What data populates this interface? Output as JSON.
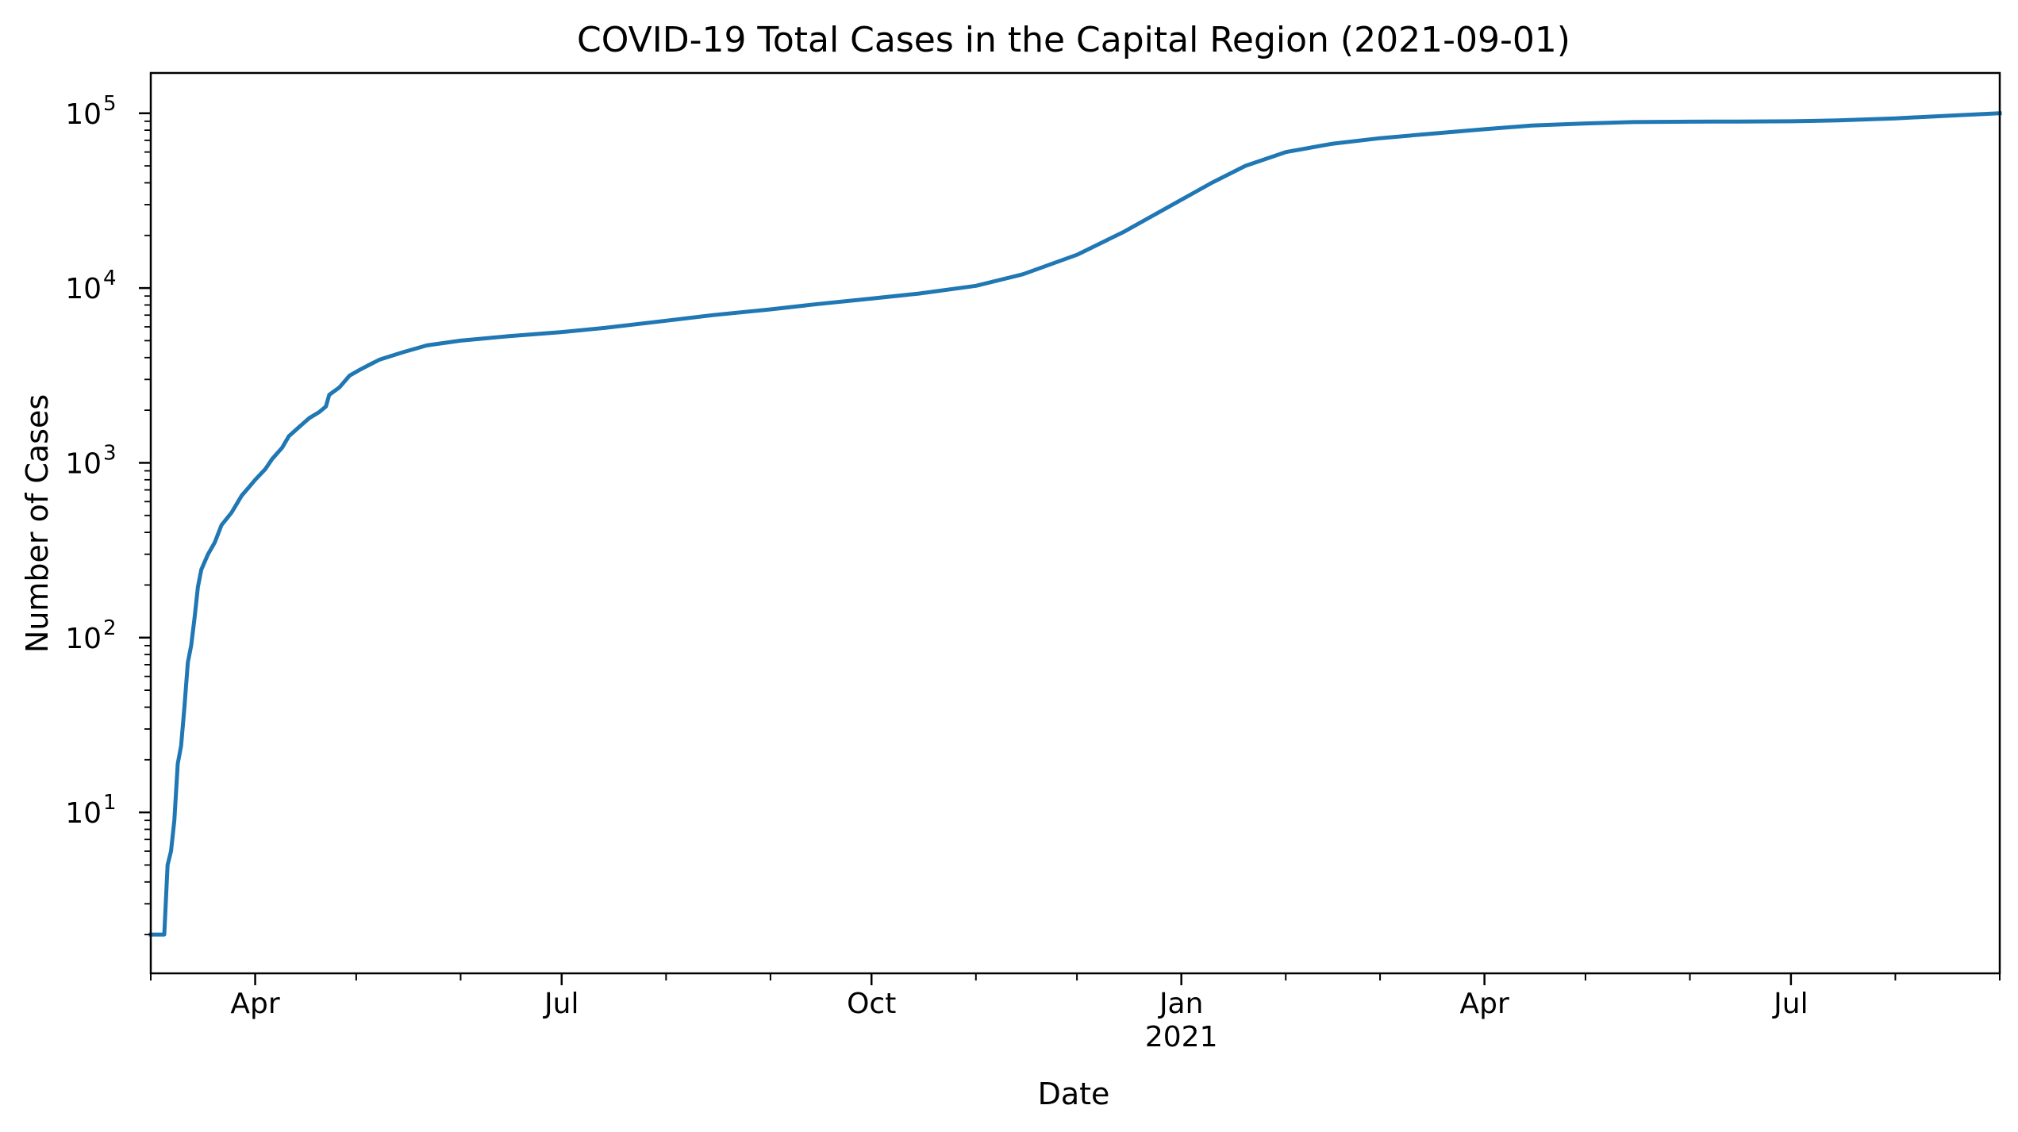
{
  "chart_data": {
    "type": "line",
    "title": "COVID-19 Total Cases in the Capital Region (2021-09-01)",
    "xlabel": "Date",
    "ylabel": "Number of Cases",
    "y_scale": "log",
    "xlim": [
      "2020-03-01",
      "2021-09-01"
    ],
    "ylim": [
      1.2,
      170000
    ],
    "grid": false,
    "line_color": "#1f77b4",
    "x_ticks": [
      {
        "date": "2020-04-01",
        "label": "Apr",
        "sublabel": ""
      },
      {
        "date": "2020-07-01",
        "label": "Jul",
        "sublabel": ""
      },
      {
        "date": "2020-10-01",
        "label": "Oct",
        "sublabel": ""
      },
      {
        "date": "2021-01-01",
        "label": "Jan",
        "sublabel": "2021"
      },
      {
        "date": "2021-04-01",
        "label": "Apr",
        "sublabel": ""
      },
      {
        "date": "2021-07-01",
        "label": "Jul",
        "sublabel": ""
      }
    ],
    "x_minor_ticks": [
      "2020-03-01",
      "2020-05-01",
      "2020-06-01",
      "2020-08-01",
      "2020-09-01",
      "2020-11-01",
      "2020-12-01",
      "2021-02-01",
      "2021-03-01",
      "2021-05-01",
      "2021-06-01",
      "2021-08-01",
      "2021-09-01"
    ],
    "y_ticks": [
      {
        "value": 10,
        "base": "10",
        "exp": "1"
      },
      {
        "value": 100,
        "base": "10",
        "exp": "2"
      },
      {
        "value": 1000,
        "base": "10",
        "exp": "3"
      },
      {
        "value": 10000,
        "base": "10",
        "exp": "4"
      },
      {
        "value": 100000,
        "base": "10",
        "exp": "5"
      }
    ],
    "series": [
      {
        "name": "",
        "points": [
          [
            "2020-03-01",
            2
          ],
          [
            "2020-03-05",
            2
          ],
          [
            "2020-03-06",
            5
          ],
          [
            "2020-03-07",
            6
          ],
          [
            "2020-03-08",
            9
          ],
          [
            "2020-03-09",
            19
          ],
          [
            "2020-03-10",
            24
          ],
          [
            "2020-03-11",
            40
          ],
          [
            "2020-03-12",
            72
          ],
          [
            "2020-03-13",
            90
          ],
          [
            "2020-03-14",
            130
          ],
          [
            "2020-03-15",
            195
          ],
          [
            "2020-03-16",
            245
          ],
          [
            "2020-03-18",
            300
          ],
          [
            "2020-03-20",
            350
          ],
          [
            "2020-03-22",
            440
          ],
          [
            "2020-03-25",
            520
          ],
          [
            "2020-03-28",
            650
          ],
          [
            "2020-03-30",
            720
          ],
          [
            "2020-04-01",
            800
          ],
          [
            "2020-04-04",
            920
          ],
          [
            "2020-04-06",
            1050
          ],
          [
            "2020-04-09",
            1220
          ],
          [
            "2020-04-11",
            1420
          ],
          [
            "2020-04-14",
            1600
          ],
          [
            "2020-04-17",
            1800
          ],
          [
            "2020-04-20",
            1950
          ],
          [
            "2020-04-22",
            2100
          ],
          [
            "2020-04-23",
            2450
          ],
          [
            "2020-04-26",
            2700
          ],
          [
            "2020-04-29",
            3150
          ],
          [
            "2020-05-02",
            3400
          ],
          [
            "2020-05-05",
            3650
          ],
          [
            "2020-05-08",
            3900
          ],
          [
            "2020-05-15",
            4300
          ],
          [
            "2020-05-22",
            4700
          ],
          [
            "2020-06-01",
            5000
          ],
          [
            "2020-06-15",
            5300
          ],
          [
            "2020-07-01",
            5600
          ],
          [
            "2020-07-15",
            5950
          ],
          [
            "2020-08-01",
            6500
          ],
          [
            "2020-08-15",
            7000
          ],
          [
            "2020-09-01",
            7550
          ],
          [
            "2020-09-15",
            8100
          ],
          [
            "2020-10-01",
            8700
          ],
          [
            "2020-10-15",
            9300
          ],
          [
            "2020-11-01",
            10300
          ],
          [
            "2020-11-15",
            12000
          ],
          [
            "2020-12-01",
            15500
          ],
          [
            "2020-12-15",
            21000
          ],
          [
            "2021-01-01",
            32000
          ],
          [
            "2021-01-10",
            40000
          ],
          [
            "2021-01-20",
            50000
          ],
          [
            "2021-02-01",
            60000
          ],
          [
            "2021-02-15",
            67000
          ],
          [
            "2021-03-01",
            72000
          ],
          [
            "2021-03-15",
            76000
          ],
          [
            "2021-04-01",
            81000
          ],
          [
            "2021-04-15",
            85000
          ],
          [
            "2021-05-01",
            87500
          ],
          [
            "2021-05-15",
            89000
          ],
          [
            "2021-06-01",
            89500
          ],
          [
            "2021-06-15",
            89700
          ],
          [
            "2021-07-01",
            90000
          ],
          [
            "2021-07-15",
            91000
          ],
          [
            "2021-08-01",
            93500
          ],
          [
            "2021-08-15",
            96500
          ],
          [
            "2021-09-01",
            100000
          ]
        ]
      }
    ]
  }
}
